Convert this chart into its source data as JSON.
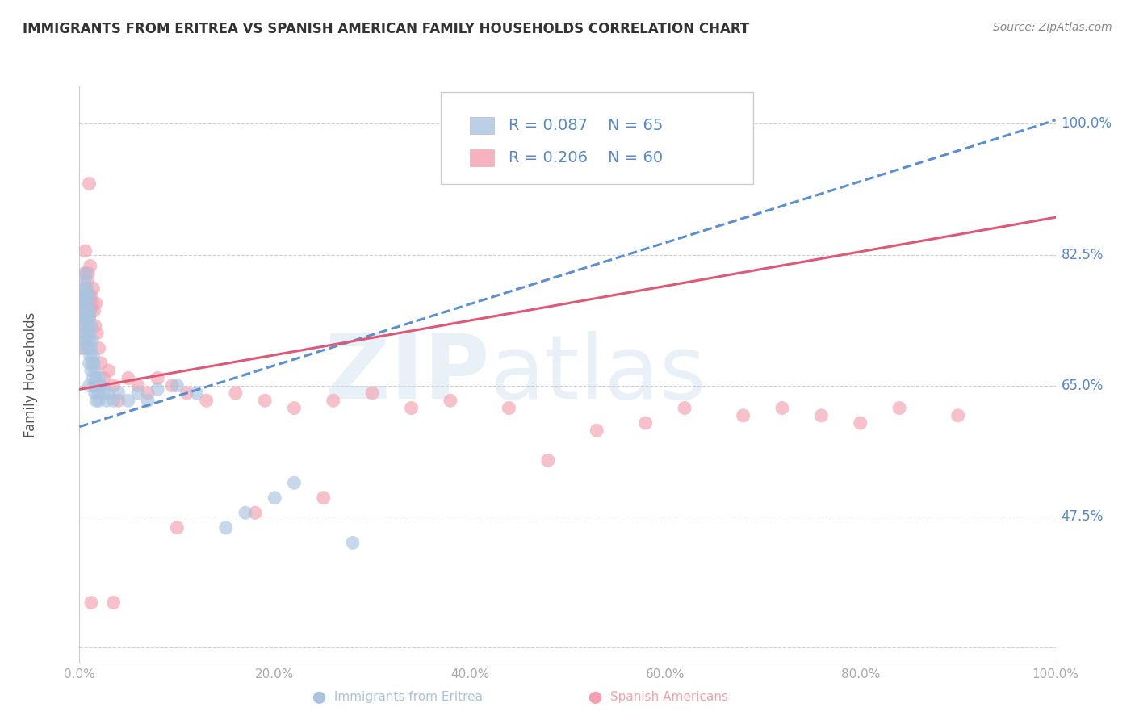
{
  "title": "IMMIGRANTS FROM ERITREA VS SPANISH AMERICAN FAMILY HOUSEHOLDS CORRELATION CHART",
  "source": "Source: ZipAtlas.com",
  "ylabel": "Family Households",
  "ytick_vals": [
    0.3,
    0.475,
    0.65,
    0.825,
    1.0
  ],
  "ytick_labels": [
    "",
    "47.5%",
    "65.0%",
    "82.5%",
    "100.0%"
  ],
  "xtick_vals": [
    0.0,
    0.2,
    0.4,
    0.6,
    0.8,
    1.0
  ],
  "xtick_labels": [
    "0.0%",
    "20.0%",
    "40.0%",
    "60.0%",
    "80.0%",
    "100.0%"
  ],
  "xlim": [
    0.0,
    1.0
  ],
  "ylim": [
    0.28,
    1.05
  ],
  "blue_dot_color": "#aac4e0",
  "pink_dot_color": "#f4a0b0",
  "blue_line_color": "#5b8fd4",
  "pink_line_color": "#e05878",
  "blue_dashed_color": "#8ab0d8",
  "grid_color": "#d0d0d0",
  "ytick_label_color": "#5588cc",
  "xtick_label_color": "#aaaaaa",
  "title_color": "#333333",
  "source_color": "#888888",
  "ylabel_color": "#555555",
  "legend_R1": "R = 0.087",
  "legend_N1": "N = 65",
  "legend_R2": "R = 0.206",
  "legend_N2": "N = 60",
  "legend_text_color": "#5588cc",
  "blue_trend": [
    0.0,
    1.0,
    0.595,
    1.005
  ],
  "pink_trend": [
    0.0,
    1.0,
    0.645,
    0.875
  ],
  "blue_scatter_x": [
    0.002,
    0.003,
    0.003,
    0.004,
    0.004,
    0.004,
    0.005,
    0.005,
    0.005,
    0.005,
    0.006,
    0.006,
    0.006,
    0.007,
    0.007,
    0.007,
    0.007,
    0.008,
    0.008,
    0.008,
    0.009,
    0.009,
    0.009,
    0.01,
    0.01,
    0.01,
    0.01,
    0.01,
    0.011,
    0.011,
    0.011,
    0.012,
    0.012,
    0.012,
    0.013,
    0.013,
    0.014,
    0.014,
    0.015,
    0.015,
    0.016,
    0.016,
    0.017,
    0.017,
    0.018,
    0.019,
    0.02,
    0.02,
    0.022,
    0.025,
    0.028,
    0.03,
    0.035,
    0.04,
    0.05,
    0.06,
    0.07,
    0.08,
    0.1,
    0.12,
    0.15,
    0.17,
    0.2,
    0.22,
    0.28
  ],
  "blue_scatter_y": [
    0.76,
    0.77,
    0.74,
    0.78,
    0.75,
    0.72,
    0.79,
    0.76,
    0.73,
    0.7,
    0.77,
    0.74,
    0.71,
    0.8,
    0.77,
    0.74,
    0.71,
    0.78,
    0.75,
    0.72,
    0.76,
    0.73,
    0.7,
    0.77,
    0.74,
    0.71,
    0.68,
    0.65,
    0.75,
    0.72,
    0.69,
    0.73,
    0.7,
    0.67,
    0.71,
    0.68,
    0.69,
    0.66,
    0.68,
    0.65,
    0.67,
    0.64,
    0.66,
    0.63,
    0.65,
    0.64,
    0.66,
    0.63,
    0.65,
    0.64,
    0.63,
    0.64,
    0.63,
    0.64,
    0.63,
    0.64,
    0.63,
    0.645,
    0.65,
    0.64,
    0.46,
    0.48,
    0.5,
    0.52,
    0.44
  ],
  "pink_scatter_x": [
    0.002,
    0.003,
    0.004,
    0.005,
    0.005,
    0.006,
    0.006,
    0.007,
    0.007,
    0.008,
    0.008,
    0.009,
    0.009,
    0.01,
    0.01,
    0.011,
    0.011,
    0.012,
    0.013,
    0.014,
    0.015,
    0.016,
    0.017,
    0.018,
    0.02,
    0.022,
    0.025,
    0.03,
    0.035,
    0.04,
    0.05,
    0.06,
    0.07,
    0.08,
    0.095,
    0.11,
    0.13,
    0.16,
    0.19,
    0.22,
    0.26,
    0.3,
    0.34,
    0.38,
    0.44,
    0.48,
    0.53,
    0.58,
    0.62,
    0.68,
    0.72,
    0.76,
    0.8,
    0.84,
    0.9,
    0.25,
    0.18,
    0.1,
    0.035,
    0.012
  ],
  "pink_scatter_y": [
    0.7,
    0.75,
    0.72,
    0.8,
    0.77,
    0.83,
    0.78,
    0.76,
    0.73,
    0.79,
    0.76,
    0.8,
    0.77,
    0.92,
    0.74,
    0.81,
    0.75,
    0.77,
    0.76,
    0.78,
    0.75,
    0.73,
    0.76,
    0.72,
    0.7,
    0.68,
    0.66,
    0.67,
    0.65,
    0.63,
    0.66,
    0.65,
    0.64,
    0.66,
    0.65,
    0.64,
    0.63,
    0.64,
    0.63,
    0.62,
    0.63,
    0.64,
    0.62,
    0.63,
    0.62,
    0.55,
    0.59,
    0.6,
    0.62,
    0.61,
    0.62,
    0.61,
    0.6,
    0.62,
    0.61,
    0.5,
    0.48,
    0.46,
    0.36,
    0.36
  ]
}
